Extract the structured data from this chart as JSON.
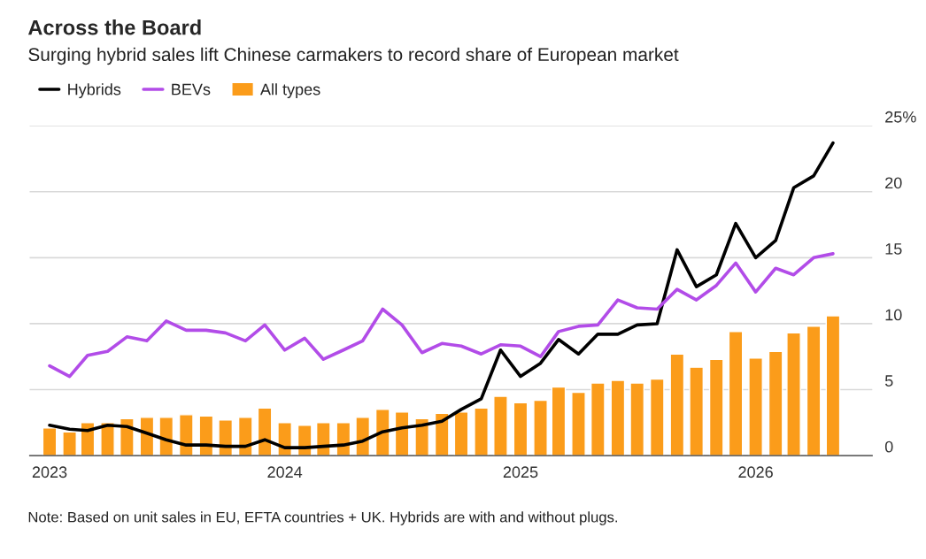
{
  "chart_data": {
    "type": "bar",
    "title": "Across the Board",
    "subtitle": "Surging hybrid sales lift Chinese carmakers to record share of European market",
    "x": [
      "2023-01",
      "2023-02",
      "2023-03",
      "2023-04",
      "2023-05",
      "2023-06",
      "2023-07",
      "2023-08",
      "2023-09",
      "2023-10",
      "2023-11",
      "2023-12",
      "2024-01",
      "2024-02",
      "2024-03",
      "2024-04",
      "2024-05",
      "2024-06",
      "2024-07",
      "2024-08",
      "2024-09",
      "2024-10",
      "2024-11",
      "2024-12",
      "2025-01",
      "2025-02",
      "2025-03",
      "2025-04",
      "2025-05",
      "2025-06",
      "2025-07",
      "2025-08",
      "2025-09",
      "2025-10",
      "2025-11",
      "2025-12",
      "2026-01",
      "2026-02",
      "2026-03",
      "2026-04",
      "2026-05"
    ],
    "series": [
      {
        "name": "Hybrids",
        "type": "line",
        "color": "#000000",
        "values": [
          2.3,
          2.0,
          1.9,
          2.3,
          2.2,
          1.7,
          1.2,
          0.8,
          0.8,
          0.7,
          0.7,
          1.2,
          0.6,
          0.6,
          0.7,
          0.8,
          1.1,
          1.8,
          2.1,
          2.3,
          2.6,
          3.5,
          4.3,
          8.0,
          6.0,
          7.0,
          8.8,
          7.7,
          9.2,
          9.2,
          9.9,
          10.0,
          15.6,
          12.8,
          13.7,
          17.6,
          15.0,
          16.3,
          20.3,
          21.2,
          23.7
        ]
      },
      {
        "name": "BEVs",
        "type": "line",
        "color": "#b24ce8",
        "values": [
          6.8,
          6.0,
          7.6,
          7.9,
          9.0,
          8.7,
          10.2,
          9.5,
          9.5,
          9.3,
          8.7,
          9.9,
          8.0,
          8.9,
          7.3,
          8.0,
          8.7,
          11.1,
          9.9,
          7.8,
          8.5,
          8.3,
          7.7,
          8.4,
          8.3,
          7.5,
          9.4,
          9.8,
          9.9,
          11.8,
          11.2,
          11.1,
          12.6,
          11.8,
          12.9,
          14.6,
          12.4,
          14.2,
          13.7,
          15.0,
          15.3
        ]
      },
      {
        "name": "All types",
        "color": "#fb9c1a",
        "values": [
          2.1,
          1.8,
          2.5,
          2.5,
          2.8,
          2.9,
          2.9,
          3.1,
          3.0,
          2.7,
          2.9,
          3.6,
          2.5,
          2.3,
          2.5,
          2.5,
          2.9,
          3.5,
          3.3,
          2.8,
          3.2,
          3.3,
          3.6,
          4.5,
          4.0,
          4.2,
          5.2,
          4.8,
          5.5,
          5.7,
          5.5,
          5.8,
          7.7,
          6.7,
          7.3,
          9.4,
          7.4,
          7.9,
          9.3,
          9.8,
          10.6
        ]
      }
    ],
    "xlim": [
      "2022-12",
      "2026-07"
    ],
    "xticks": [
      "2023",
      "2024",
      "2025",
      "2026"
    ],
    "ylim": [
      0,
      25
    ],
    "yticks": [
      0,
      5,
      10,
      15,
      20,
      {
        "value": 25,
        "label": "25%"
      }
    ],
    "grid": "y",
    "legend": "top left",
    "annotations": [
      "Note: Based on unit sales in EU, EFTA countries + UK. Hybrids are with and without plugs."
    ]
  }
}
